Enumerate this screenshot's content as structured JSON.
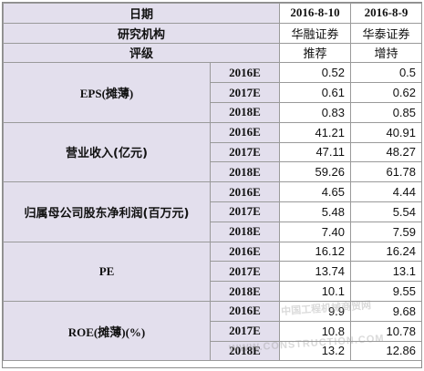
{
  "header": {
    "date_label": "日期",
    "date_1": "2016-8-10",
    "date_2": "2016-8-9",
    "institution_label": "研究机构",
    "broker_1": "华融证券",
    "broker_2": "华泰证券",
    "rating_label": "评级",
    "rating_1": "推荐",
    "rating_2": "增持"
  },
  "metrics": [
    {
      "name": "EPS(摊薄)",
      "rows": [
        {
          "year": "2016E",
          "v1": "0.52",
          "v2": "0.5"
        },
        {
          "year": "2017E",
          "v1": "0.61",
          "v2": "0.62"
        },
        {
          "year": "2018E",
          "v1": "0.83",
          "v2": "0.85"
        }
      ]
    },
    {
      "name": "营业收入(亿元)",
      "rows": [
        {
          "year": "2016E",
          "v1": "41.21",
          "v2": "40.91"
        },
        {
          "year": "2017E",
          "v1": "47.11",
          "v2": "48.27"
        },
        {
          "year": "2018E",
          "v1": "59.26",
          "v2": "61.78"
        }
      ]
    },
    {
      "name": "归属母公司股东净利润(百万元)",
      "rows": [
        {
          "year": "2016E",
          "v1": "4.65",
          "v2": "4.44"
        },
        {
          "year": "2017E",
          "v1": "5.48",
          "v2": "5.54"
        },
        {
          "year": "2018E",
          "v1": "7.40",
          "v2": "7.59"
        }
      ]
    },
    {
      "name": "PE",
      "rows": [
        {
          "year": "2016E",
          "v1": "16.12",
          "v2": "16.24"
        },
        {
          "year": "2017E",
          "v1": "13.74",
          "v2": "13.1"
        },
        {
          "year": "2018E",
          "v1": "10.1",
          "v2": "9.55"
        }
      ]
    },
    {
      "name": "ROE(摊薄)(%)",
      "rows": [
        {
          "year": "2016E",
          "v1": "9.9",
          "v2": "9.68"
        },
        {
          "year": "2017E",
          "v1": "10.8",
          "v2": "10.78"
        },
        {
          "year": "2018E",
          "v1": "13.2",
          "v2": "12.86"
        }
      ]
    }
  ],
  "watermark": {
    "line_1": "中国工程机械商贸网",
    "line_2": "WWW.CONSTRUCTION.COM"
  }
}
